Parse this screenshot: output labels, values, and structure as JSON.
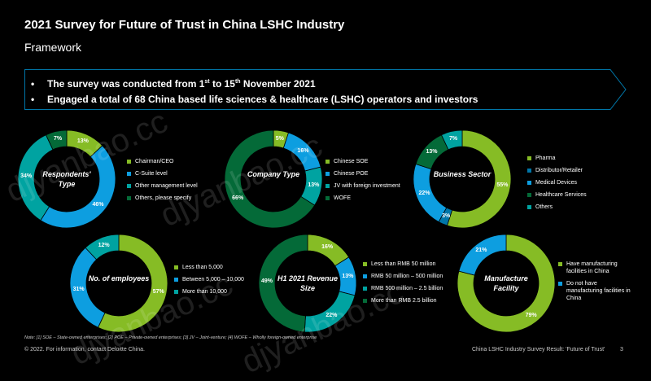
{
  "title": "2021 Survey for Future of Trust in China LSHC Industry",
  "subtitle": "Framework",
  "banner": {
    "line1_pre": "The survey was conducted from 1",
    "line1_sup1": "st",
    "line1_mid": " to 15",
    "line1_sup2": "th",
    "line1_post": " November 2021",
    "line2": "Engaged a total of 68 China based life sciences & healthcare (LSHC) operators and investors"
  },
  "colors": {
    "light_green": "#86bc25",
    "blue": "#0d9ee0",
    "teal": "#00a3a1",
    "dark_green": "#046a38",
    "accent": "#0076a8"
  },
  "charts": [
    {
      "center": "Respondents' Type",
      "labels": [
        "13%",
        "46%",
        "34%",
        "7%"
      ],
      "values": [
        13,
        46,
        34,
        7
      ],
      "colors": [
        "#86bc25",
        "#0d9ee0",
        "#00a3a1",
        "#046a38"
      ],
      "legend": [
        "Chairman/CEO",
        "C-Suite level",
        "Other management level",
        "Others, please specify"
      ]
    },
    {
      "center": "Company Type",
      "labels": [
        "5%",
        "16%",
        "13%",
        "66%"
      ],
      "values": [
        5,
        16,
        13,
        66
      ],
      "colors": [
        "#86bc25",
        "#0d9ee0",
        "#00a3a1",
        "#046a38"
      ],
      "legend": [
        "Chinese SOE",
        "Chinese POE",
        "JV with foreign investment",
        "WOFE"
      ]
    },
    {
      "center": "Business Sector",
      "labels": [
        "55%",
        "3%",
        "22%",
        "13%",
        "7%"
      ],
      "values": [
        55,
        3,
        22,
        13,
        7
      ],
      "colors": [
        "#86bc25",
        "#0076a8",
        "#0d9ee0",
        "#046a38",
        "#00a3a1"
      ],
      "legend": [
        "Pharma",
        "Distributor/Retailer",
        "Medical Devices",
        "Healthcare Services",
        "Others"
      ]
    },
    {
      "center": "No. of employees",
      "labels": [
        "57%",
        "31%",
        "12%"
      ],
      "values": [
        57,
        31,
        12
      ],
      "colors": [
        "#86bc25",
        "#0d9ee0",
        "#00a3a1"
      ],
      "legend": [
        "Less than 5,000",
        "Between 5,000 – 10,000",
        "More than 10,000"
      ]
    },
    {
      "center": "H1 2021 Revenue Size",
      "labels": [
        "16%",
        "13%",
        "22%",
        "49%"
      ],
      "values": [
        16,
        13,
        22,
        49
      ],
      "colors": [
        "#86bc25",
        "#0d9ee0",
        "#00a3a1",
        "#046a38"
      ],
      "legend": [
        "Less than RMB 50 million",
        "RMB 50 million – 500 million",
        "RMB 500 million – 2.5 billion",
        "More than RMB 2.5 billion"
      ]
    },
    {
      "center": "Manufacture Facility",
      "labels": [
        "79%",
        "21%"
      ],
      "values": [
        79,
        21
      ],
      "colors": [
        "#86bc25",
        "#0d9ee0"
      ],
      "legend": [
        "Have manufacturing facilities in China",
        "Do not have manufacturing facilities in China"
      ]
    }
  ],
  "note": "Note: [1] SOE – State-owned enterprises; [2] POE – Private-owned enterprises; [3] JV – Joint-venture; [4] WOFE – Wholly foreign-owned enterprise",
  "footer_left": "© 2022. For information, contact Deloitte China.",
  "footer_right": "China LSHC Industry Survey Result: 'Future of Trust'",
  "page_number": "3",
  "watermark": "djyanbao.cc"
}
